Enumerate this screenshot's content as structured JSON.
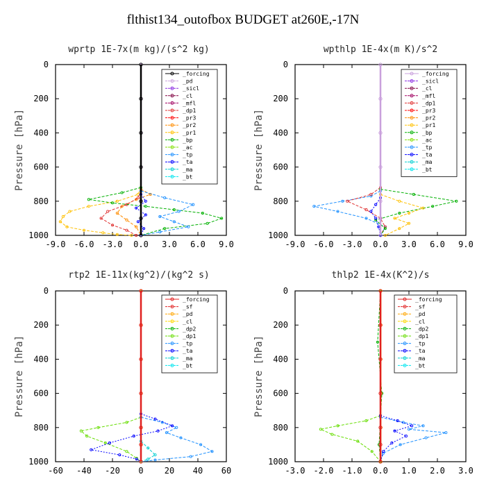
{
  "figure": {
    "title": "flthist134_outofbox  BUDGET at260E,-17N"
  },
  "colors": {
    "forcing": "#000000",
    "sicl": "#8a2be2",
    "cl": "#800040",
    "mfl": "#a00060",
    "dp1_a": "#e03030",
    "pr3": "#ff0000",
    "pr2": "#ff8c00",
    "pr1": "#ffc000",
    "bp": "#00b000",
    "ac": "#80e000",
    "tp": "#1e90ff",
    "ta": "#0000ff",
    "ma": "#00ced1",
    "bt": "#00e5ee",
    "pd": "#b070d0",
    "lav": "#c9a0dc",
    "sf": "#e02020",
    "pd2": "#ffa500",
    "cl2": "#ffd700",
    "dp2": "#00b000",
    "dp1_b": "#66dd00"
  },
  "chart_data": [
    {
      "type": "line",
      "title": "wprtp  1E-7x(m kg)/(s^2 kg)",
      "ylabel": "Pressure [hPa]",
      "xlim": [
        -9,
        9
      ],
      "ylim": [
        1000,
        0
      ],
      "xticks": [
        "-9.0",
        "-6.0",
        "-3.0",
        "0.0",
        "3.0",
        "6.0",
        "9.0"
      ],
      "xtick_values": [
        -9,
        -6,
        -3,
        0,
        3,
        6,
        9
      ],
      "yticks": [
        "0",
        "200",
        "400",
        "600",
        "800",
        "1000"
      ],
      "ytick_values": [
        0,
        200,
        400,
        600,
        800,
        1000
      ],
      "legend": [
        "_forcing",
        "_pd",
        "_sicl",
        "_cl",
        "_mfl",
        "_dp1",
        "_pr3",
        "_pr2",
        "_pr1",
        "_bp",
        "_ac",
        "_tp",
        "_ta",
        "_ma",
        "_bt"
      ],
      "legend_colors": [
        "#000000",
        "#c9a0dc",
        "#8a2be2",
        "#800040",
        "#a00060",
        "#e03030",
        "#ff0000",
        "#ff8c00",
        "#ffc000",
        "#00b000",
        "#80e000",
        "#1e90ff",
        "#0000ff",
        "#00ced1",
        "#00e5ee"
      ],
      "series": [
        {
          "color": "#ffc000",
          "dash": "4,2",
          "x": [
            0,
            -0.3,
            -2.5,
            -5.5,
            -7.5,
            -8.2,
            -8.5,
            -7.8,
            -6.0,
            -4.0,
            -2.5,
            -1.0
          ],
          "y": [
            720,
            760,
            800,
            830,
            860,
            890,
            920,
            950,
            970,
            985,
            995,
            1000
          ]
        },
        {
          "color": "#ff8c00",
          "dash": "4,2",
          "x": [
            0,
            1.0,
            -0.5,
            -2.0,
            -2.5,
            -1.5,
            -0.5,
            0
          ],
          "y": [
            730,
            760,
            790,
            830,
            870,
            910,
            950,
            1000
          ]
        },
        {
          "color": "#e03030",
          "dash": "4,2",
          "x": [
            0,
            -0.3,
            -1.5,
            -3.5,
            -4.2,
            -3.0,
            -1.5,
            -0.5
          ],
          "y": [
            740,
            780,
            820,
            860,
            900,
            940,
            970,
            1000
          ]
        },
        {
          "color": "#00b000",
          "dash": "4,2",
          "x": [
            0,
            -2.0,
            -5.5,
            -3.0,
            0.5,
            3.5,
            6.5,
            8.5,
            7.0,
            2.5,
            0
          ],
          "y": [
            720,
            750,
            790,
            810,
            830,
            850,
            870,
            900,
            930,
            960,
            1000
          ]
        },
        {
          "color": "#1e90ff",
          "dash": "4,2",
          "x": [
            0,
            2.5,
            5.5,
            4.0,
            2.0,
            3.5,
            5.0,
            2.0,
            0
          ],
          "y": [
            740,
            780,
            820,
            860,
            890,
            920,
            950,
            980,
            1000
          ]
        },
        {
          "color": "#0000ff",
          "dash": "2,2",
          "x": [
            0,
            0.5,
            -0.5,
            0.5,
            -0.3,
            0.3,
            0
          ],
          "y": [
            760,
            800,
            840,
            880,
            920,
            960,
            1000
          ]
        },
        {
          "color": "#c9a0dc",
          "dash": "",
          "width": 1,
          "x": [
            0.05,
            0.05,
            0.05,
            0.05,
            0.05,
            0.05,
            0.05
          ],
          "y": [
            0,
            200,
            400,
            600,
            800,
            900,
            1000
          ]
        },
        {
          "color": "#000000",
          "dash": "",
          "width": 2.5,
          "x": [
            0,
            0,
            0,
            0,
            0,
            0,
            0
          ],
          "y": [
            0,
            200,
            400,
            600,
            800,
            900,
            1000
          ]
        }
      ]
    },
    {
      "type": "line",
      "title": "wpthlp  1E-4x(m K)/s^2",
      "ylabel": "Pressure [hPa]",
      "xlim": [
        -9,
        9
      ],
      "ylim": [
        1000,
        0
      ],
      "xticks": [
        "-9.0",
        "-6.0",
        "-3.0",
        "0.0",
        "3.0",
        "6.0",
        "9.0"
      ],
      "xtick_values": [
        -9,
        -6,
        -3,
        0,
        3,
        6,
        9
      ],
      "yticks": [
        "0",
        "200",
        "400",
        "600",
        "800",
        "1000"
      ],
      "ytick_values": [
        0,
        200,
        400,
        600,
        800,
        1000
      ],
      "legend": [
        "_forcing",
        "_sicl",
        "_cl",
        "_mfl",
        "_dp1",
        "_pr3",
        "_pr2",
        "_pr1",
        "_bp",
        "_ac",
        "_tp",
        "_ta",
        "_ma",
        "_bt"
      ],
      "legend_colors": [
        "#c9a0dc",
        "#8a2be2",
        "#800040",
        "#a00060",
        "#e03030",
        "#ff0000",
        "#ff8c00",
        "#ffc000",
        "#00b000",
        "#80e000",
        "#1e90ff",
        "#0000ff",
        "#00ced1",
        "#00e5ee"
      ],
      "series": [
        {
          "color": "#1e90ff",
          "dash": "4,2",
          "x": [
            0,
            -1.0,
            -4.0,
            -7.0,
            -4.5,
            -1.5,
            0.5,
            0
          ],
          "y": [
            740,
            770,
            800,
            830,
            860,
            900,
            950,
            1000
          ]
        },
        {
          "color": "#e03030",
          "dash": "4,2",
          "x": [
            0,
            -1.0,
            -3.5,
            -1.5,
            0,
            0.5,
            0
          ],
          "y": [
            720,
            760,
            800,
            850,
            900,
            950,
            1000
          ]
        },
        {
          "color": "#00b000",
          "dash": "4,2",
          "x": [
            0,
            3.5,
            8.0,
            5.5,
            2.0,
            -0.5,
            0.5,
            0
          ],
          "y": [
            730,
            760,
            800,
            830,
            870,
            910,
            960,
            1000
          ]
        },
        {
          "color": "#ffc000",
          "dash": "4,2",
          "x": [
            0,
            2.0,
            4.5,
            3.0,
            1.5,
            3.0,
            2.0,
            0.5
          ],
          "y": [
            760,
            800,
            840,
            870,
            900,
            930,
            960,
            1000
          ]
        },
        {
          "color": "#0000ff",
          "dash": "2,2",
          "x": [
            0,
            -0.5,
            -1.0,
            -0.5,
            -0.2,
            0
          ],
          "y": [
            780,
            820,
            860,
            900,
            950,
            1000
          ]
        },
        {
          "color": "#c9a0dc",
          "dash": "",
          "width": 2.5,
          "x": [
            0,
            0,
            0,
            0,
            0,
            0,
            0
          ],
          "y": [
            0,
            200,
            400,
            600,
            800,
            900,
            1000
          ]
        }
      ]
    },
    {
      "type": "line",
      "title": "rtp2  1E-11x(kg^2)/(kg^2 s)",
      "ylabel": "Pressure [hPa]",
      "xlim": [
        -60,
        60
      ],
      "ylim": [
        1000,
        0
      ],
      "xticks": [
        "-60",
        "-40",
        "-20",
        "0",
        "20",
        "40",
        "60"
      ],
      "xtick_values": [
        -60,
        -40,
        -20,
        0,
        20,
        40,
        60
      ],
      "yticks": [
        "0",
        "200",
        "400",
        "600",
        "800",
        "1000"
      ],
      "ytick_values": [
        0,
        200,
        400,
        600,
        800,
        1000
      ],
      "legend": [
        "_forcing",
        "_sf",
        "_pd",
        "_cl",
        "_dp2",
        "_dp1",
        "_tp",
        "_ta",
        "_ma",
        "_bt"
      ],
      "legend_colors": [
        "#e02020",
        "#e02020",
        "#ffa500",
        "#ffd700",
        "#00b000",
        "#66dd00",
        "#1e90ff",
        "#0000ff",
        "#00ced1",
        "#00e5ee"
      ],
      "series": [
        {
          "color": "#66dd00",
          "dash": "4,2",
          "x": [
            0,
            -10,
            -30,
            -42,
            -38,
            -25,
            -10,
            -3,
            0
          ],
          "y": [
            740,
            770,
            800,
            820,
            850,
            890,
            940,
            980,
            1000
          ]
        },
        {
          "color": "#1e90ff",
          "dash": "4,2",
          "x": [
            0,
            15,
            25,
            18,
            28,
            42,
            50,
            35,
            10,
            0
          ],
          "y": [
            740,
            770,
            800,
            830,
            860,
            900,
            940,
            970,
            990,
            1000
          ]
        },
        {
          "color": "#0000ff",
          "dash": "2,2",
          "x": [
            0,
            10,
            22,
            12,
            -5,
            -22,
            -35,
            -15,
            -3,
            0
          ],
          "y": [
            720,
            750,
            790,
            820,
            850,
            890,
            930,
            960,
            985,
            1000
          ]
        },
        {
          "color": "#00ced1",
          "dash": "4,2",
          "x": [
            0,
            5,
            10,
            5,
            0
          ],
          "y": [
            880,
            920,
            960,
            985,
            1000
          ]
        },
        {
          "color": "#ffa500",
          "dash": "",
          "width": 1,
          "x": [
            0.3,
            0.3,
            0.3,
            0.3,
            0.3,
            0.3,
            0.3
          ],
          "y": [
            0,
            200,
            400,
            600,
            800,
            900,
            1000
          ]
        },
        {
          "color": "#e02020",
          "dash": "",
          "width": 2.5,
          "x": [
            0,
            0,
            0,
            0,
            0,
            0,
            0
          ],
          "y": [
            0,
            200,
            400,
            600,
            800,
            900,
            1000
          ]
        }
      ]
    },
    {
      "type": "line",
      "title": "thlp2  1E-4x(K^2)/s",
      "ylabel": "Pressure [hPa]",
      "xlim": [
        -3,
        3
      ],
      "ylim": [
        1000,
        0
      ],
      "xticks": [
        "-3.0",
        "-2.0",
        "-1.0",
        "0.0",
        "1.0",
        "2.0",
        "3.0"
      ],
      "xtick_values": [
        -3,
        -2,
        -1,
        0,
        1,
        2,
        3
      ],
      "yticks": [
        "0",
        "200",
        "400",
        "600",
        "800",
        "1000"
      ],
      "ytick_values": [
        0,
        200,
        400,
        600,
        800,
        1000
      ],
      "legend": [
        "_forcing",
        "_sf",
        "_pd",
        "_cl",
        "_dp2",
        "_dp1",
        "_tp",
        "_ta",
        "_ma",
        "_bt"
      ],
      "legend_colors": [
        "#e02020",
        "#e02020",
        "#ffa500",
        "#ffd700",
        "#00b000",
        "#66dd00",
        "#1e90ff",
        "#0000ff",
        "#00ced1",
        "#00e5ee"
      ],
      "series": [
        {
          "color": "#66dd00",
          "dash": "4,2",
          "x": [
            0,
            -0.5,
            -1.5,
            -2.1,
            -1.7,
            -0.8,
            -0.3,
            0
          ],
          "y": [
            730,
            760,
            790,
            810,
            840,
            880,
            940,
            1000
          ]
        },
        {
          "color": "#1e90ff",
          "dash": "4,2",
          "x": [
            0,
            0.8,
            1.5,
            1.0,
            2.3,
            1.6,
            0.7,
            0.1,
            0
          ],
          "y": [
            740,
            770,
            790,
            810,
            830,
            860,
            900,
            950,
            1000
          ]
        },
        {
          "color": "#0000ff",
          "dash": "2,2",
          "x": [
            0,
            0.6,
            1.1,
            0.5,
            0.9,
            0.4,
            0.1,
            0
          ],
          "y": [
            730,
            760,
            790,
            820,
            850,
            890,
            940,
            1000
          ]
        },
        {
          "color": "#00b000",
          "dash": "4,2",
          "x": [
            0,
            -0.1,
            0.05,
            -0.05,
            0
          ],
          "y": [
            0,
            300,
            600,
            900,
            1000
          ]
        },
        {
          "color": "#ffa500",
          "dash": "",
          "width": 1,
          "x": [
            0.02,
            0.02,
            0.02,
            0.02,
            0.02,
            0.02
          ],
          "y": [
            0,
            200,
            400,
            600,
            800,
            1000
          ]
        },
        {
          "color": "#e02020",
          "dash": "",
          "width": 2.5,
          "x": [
            0,
            0,
            0,
            0,
            0,
            0,
            0
          ],
          "y": [
            0,
            200,
            400,
            600,
            800,
            900,
            1000
          ]
        }
      ]
    }
  ]
}
